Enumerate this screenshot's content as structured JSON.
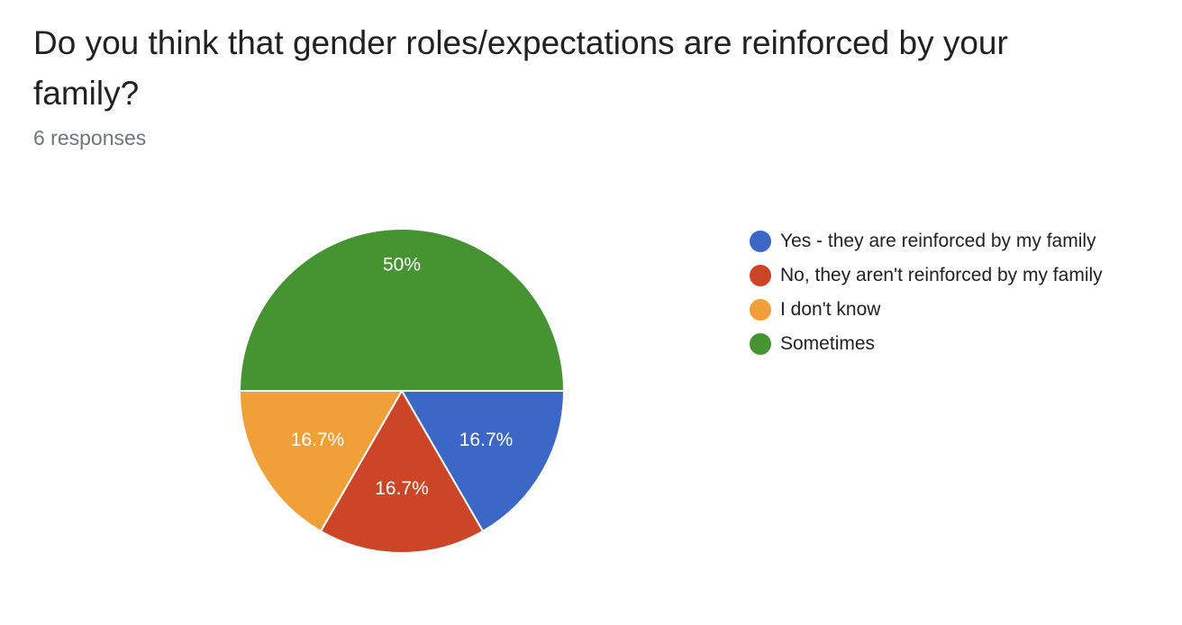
{
  "header": {
    "title": "Do you think that gender roles/expectations are reinforced by your family?",
    "responses": "6 responses"
  },
  "chart_data": {
    "type": "pie",
    "title": "Do you think that gender roles/expectations are reinforced by your family?",
    "total_responses": 6,
    "slices": [
      {
        "label": "Yes - they are reinforced by my family",
        "value": 1,
        "percent_label": "16.7%",
        "color": "#3d67c7"
      },
      {
        "label": "No, they aren't reinforced by my family",
        "value": 1,
        "percent_label": "16.7%",
        "color": "#cc4527"
      },
      {
        "label": "I don't know",
        "value": 1,
        "percent_label": "16.7%",
        "color": "#f19f38"
      },
      {
        "label": "Sometimes",
        "value": 3,
        "percent_label": "50%",
        "color": "#459431"
      }
    ],
    "legend_position": "right"
  }
}
